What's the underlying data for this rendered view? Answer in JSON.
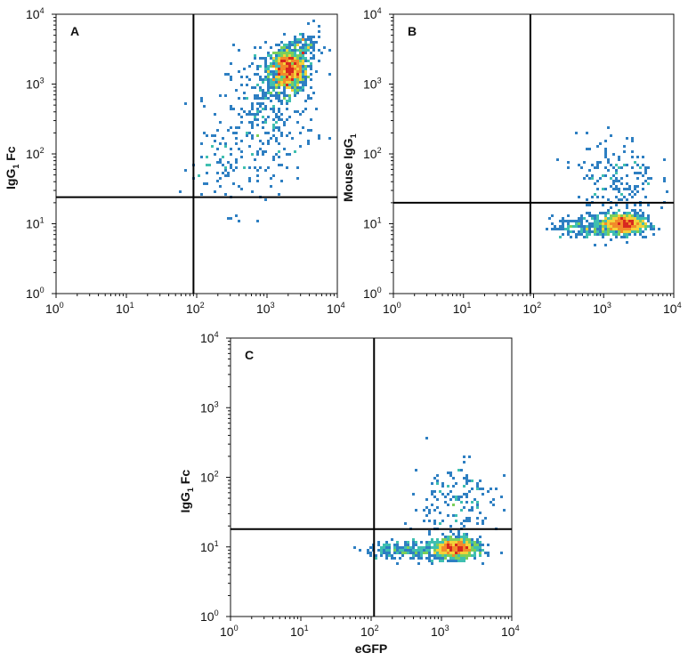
{
  "chart_data": [
    {
      "type": "scatter",
      "panel_label": "A",
      "xlabel": "",
      "ylabel": "IgG1 Fc",
      "ylabel_parts": {
        "main": "IgG",
        "sub": "1",
        "suffix": " Fc"
      },
      "xscale": "log",
      "yscale": "log",
      "xlim": [
        1,
        10000
      ],
      "ylim": [
        1,
        10000
      ],
      "xticks": [
        {
          "base": "10",
          "exp": "0"
        },
        {
          "base": "10",
          "exp": "1"
        },
        {
          "base": "10",
          "exp": "2"
        },
        {
          "base": "10",
          "exp": "3"
        },
        {
          "base": "10",
          "exp": "4"
        }
      ],
      "yticks": [
        {
          "base": "10",
          "exp": "0"
        },
        {
          "base": "10",
          "exp": "1"
        },
        {
          "base": "10",
          "exp": "2"
        },
        {
          "base": "10",
          "exp": "3"
        },
        {
          "base": "10",
          "exp": "4"
        }
      ],
      "quadrant_gate": {
        "x": 90,
        "y": 24
      },
      "populations": [
        {
          "x": 2000,
          "y": 1600,
          "spread_x": 0.14,
          "spread_y": 0.16,
          "n": 900
        },
        {
          "x": 1100,
          "y": 450,
          "spread_x": 0.32,
          "spread_y": 0.4,
          "n": 260
        },
        {
          "x": 300,
          "y": 80,
          "spread_x": 0.35,
          "spread_y": 0.35,
          "n": 110
        },
        {
          "x": 3500,
          "y": 3500,
          "spread_x": 0.12,
          "spread_y": 0.12,
          "n": 80
        }
      ],
      "grid": false,
      "legend": "none"
    },
    {
      "type": "scatter",
      "panel_label": "B",
      "xlabel": "",
      "ylabel": "Mouse IgG1",
      "ylabel_parts": {
        "main": "Mouse IgG",
        "sub": "1",
        "suffix": ""
      },
      "xscale": "log",
      "yscale": "log",
      "xlim": [
        1,
        10000
      ],
      "ylim": [
        1,
        10000
      ],
      "xticks": [
        {
          "base": "10",
          "exp": "0"
        },
        {
          "base": "10",
          "exp": "1"
        },
        {
          "base": "10",
          "exp": "2"
        },
        {
          "base": "10",
          "exp": "3"
        },
        {
          "base": "10",
          "exp": "4"
        }
      ],
      "yticks": [
        {
          "base": "10",
          "exp": "0"
        },
        {
          "base": "10",
          "exp": "1"
        },
        {
          "base": "10",
          "exp": "2"
        },
        {
          "base": "10",
          "exp": "3"
        },
        {
          "base": "10",
          "exp": "4"
        }
      ],
      "quadrant_gate": {
        "x": 90,
        "y": 20
      },
      "populations": [
        {
          "x": 1900,
          "y": 10,
          "spread_x": 0.15,
          "spread_y": 0.07,
          "n": 1000
        },
        {
          "x": 700,
          "y": 9,
          "spread_x": 0.3,
          "spread_y": 0.08,
          "n": 200
        },
        {
          "x": 1500,
          "y": 45,
          "spread_x": 0.28,
          "spread_y": 0.3,
          "n": 170
        }
      ],
      "grid": false,
      "legend": "none"
    },
    {
      "type": "scatter",
      "panel_label": "C",
      "xlabel": "eGFP",
      "ylabel": "IgG1 Fc",
      "ylabel_parts": {
        "main": "IgG",
        "sub": "1",
        "suffix": " Fc"
      },
      "xscale": "log",
      "yscale": "log",
      "xlim": [
        1,
        10000
      ],
      "ylim": [
        1,
        10000
      ],
      "xticks": [
        {
          "base": "10",
          "exp": "0"
        },
        {
          "base": "10",
          "exp": "1"
        },
        {
          "base": "10",
          "exp": "2"
        },
        {
          "base": "10",
          "exp": "3"
        },
        {
          "base": "10",
          "exp": "4"
        }
      ],
      "yticks": [
        {
          "base": "10",
          "exp": "0"
        },
        {
          "base": "10",
          "exp": "1"
        },
        {
          "base": "10",
          "exp": "2"
        },
        {
          "base": "10",
          "exp": "3"
        },
        {
          "base": "10",
          "exp": "4"
        }
      ],
      "quadrant_gate": {
        "x": 110,
        "y": 18
      },
      "populations": [
        {
          "x": 1600,
          "y": 9.5,
          "spread_x": 0.15,
          "spread_y": 0.07,
          "n": 1000
        },
        {
          "x": 400,
          "y": 9,
          "spread_x": 0.35,
          "spread_y": 0.07,
          "n": 220
        },
        {
          "x": 1500,
          "y": 40,
          "spread_x": 0.3,
          "spread_y": 0.32,
          "n": 170
        }
      ],
      "grid": false,
      "legend": "none"
    }
  ],
  "density_colors": [
    "#1f3f9a",
    "#2e7fc2",
    "#3fbfb0",
    "#7ccf5a",
    "#f2d23a",
    "#f28a2a",
    "#d8281f"
  ]
}
